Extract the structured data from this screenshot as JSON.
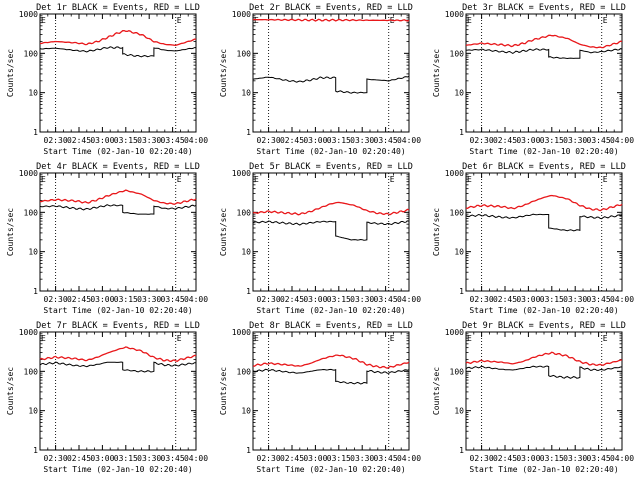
{
  "colors": {
    "events": "#000000",
    "lld": "#e8171a",
    "axis": "#000000",
    "background": "#ffffff"
  },
  "chart_data": [
    {
      "type": "line",
      "title": "Det 1r BLACK = Events, RED = LLD",
      "xlabel": "Start Time (02-Jan-10 02:20:40)",
      "ylabel": "Counts/sec",
      "yscale": "log",
      "ylim": [
        1,
        1000
      ],
      "ytick_labels": [
        "1",
        "10",
        "100",
        "1000"
      ],
      "xlim": [
        140,
        240
      ],
      "xtick_labels": [
        "02:30",
        "02:45",
        "03:00",
        "03:15",
        "03:30",
        "03:45",
        "04:00"
      ],
      "vlines": [
        150,
        227
      ],
      "corner_marks": [
        "E",
        "E"
      ],
      "series": [
        {
          "name": "Events",
          "x": [
            140,
            150,
            163,
            170,
            177,
            183,
            193,
            203,
            213,
            220,
            227,
            240
          ],
          "values": [
            130,
            135,
            118,
            112,
            125,
            140,
            95,
            85,
            140,
            120,
            115,
            140
          ]
        },
        {
          "name": "LLD",
          "x": [
            140,
            150,
            163,
            170,
            177,
            183,
            190,
            195,
            205,
            213,
            220,
            227,
            240
          ],
          "values": [
            180,
            200,
            185,
            170,
            200,
            250,
            330,
            380,
            300,
            200,
            170,
            160,
            230
          ]
        }
      ]
    },
    {
      "type": "line",
      "title": "Det 2r BLACK = Events, RED = LLD",
      "xlabel": "Start Time (02-Jan-10 02:20:40)",
      "ylabel": "Counts/sec",
      "yscale": "log",
      "ylim": [
        1,
        1000
      ],
      "ytick_labels": [
        "1",
        "10",
        "100",
        "1000"
      ],
      "xlim": [
        140,
        240
      ],
      "xtick_labels": [
        "02:30",
        "02:45",
        "03:00",
        "03:15",
        "03:30",
        "03:45",
        "04:00"
      ],
      "vlines": [
        150,
        227
      ],
      "corner_marks": [
        "E",
        "E"
      ],
      "series": [
        {
          "name": "Events",
          "x": [
            140,
            150,
            163,
            170,
            177,
            183,
            193,
            203,
            213,
            220,
            227,
            240
          ],
          "values": [
            22,
            25,
            20,
            19,
            21,
            24,
            11,
            10,
            22,
            21,
            20,
            26
          ]
        },
        {
          "name": "LLD",
          "x": [
            140,
            160,
            180,
            200,
            220,
            240
          ],
          "values": [
            720,
            710,
            700,
            700,
            690,
            690
          ]
        }
      ]
    },
    {
      "type": "line",
      "title": "Det 3r BLACK = Events, RED = LLD",
      "xlabel": "Start Time (02-Jan-10 02:20:40)",
      "ylabel": "Counts/sec",
      "yscale": "log",
      "ylim": [
        1,
        1000
      ],
      "ytick_labels": [
        "1",
        "10",
        "100",
        "1000"
      ],
      "xlim": [
        140,
        240
      ],
      "xtick_labels": [
        "02:30",
        "02:45",
        "03:00",
        "03:15",
        "03:30",
        "03:45",
        "04:00"
      ],
      "vlines": [
        150,
        227
      ],
      "corner_marks": [
        "E",
        "E"
      ],
      "series": [
        {
          "name": "Events",
          "x": [
            140,
            150,
            163,
            170,
            177,
            183,
            193,
            203,
            213,
            220,
            227,
            240
          ],
          "values": [
            120,
            125,
            110,
            105,
            115,
            125,
            80,
            75,
            120,
            105,
            110,
            130
          ]
        },
        {
          "name": "LLD",
          "x": [
            140,
            150,
            163,
            170,
            177,
            183,
            190,
            195,
            205,
            213,
            220,
            227,
            240
          ],
          "values": [
            160,
            180,
            165,
            155,
            180,
            220,
            260,
            290,
            240,
            170,
            145,
            140,
            200
          ]
        }
      ]
    },
    {
      "type": "line",
      "title": "Det 4r BLACK = Events, RED = LLD",
      "xlabel": "Start Time (02-Jan-10 02:20:40)",
      "ylabel": "Counts/sec",
      "yscale": "log",
      "ylim": [
        1,
        1000
      ],
      "ytick_labels": [
        "1",
        "10",
        "100",
        "1000"
      ],
      "xlim": [
        140,
        240
      ],
      "xtick_labels": [
        "02:30",
        "02:45",
        "03:00",
        "03:15",
        "03:30",
        "03:45",
        "04:00"
      ],
      "vlines": [
        150,
        227
      ],
      "corner_marks": [
        "E",
        "E"
      ],
      "series": [
        {
          "name": "Events",
          "x": [
            140,
            150,
            163,
            170,
            177,
            183,
            193,
            203,
            213,
            220,
            227,
            240
          ],
          "values": [
            140,
            145,
            125,
            120,
            135,
            150,
            100,
            90,
            145,
            125,
            125,
            150
          ]
        },
        {
          "name": "LLD",
          "x": [
            140,
            150,
            163,
            170,
            177,
            183,
            190,
            195,
            205,
            213,
            220,
            227,
            240
          ],
          "values": [
            190,
            210,
            195,
            175,
            210,
            260,
            320,
            360,
            290,
            200,
            170,
            165,
            220
          ]
        }
      ]
    },
    {
      "type": "line",
      "title": "Det 5r BLACK = Events, RED = LLD",
      "xlabel": "Start Time (02-Jan-10 02:20:40)",
      "ylabel": "Counts/sec",
      "yscale": "log",
      "ylim": [
        1,
        1000
      ],
      "ytick_labels": [
        "1",
        "10",
        "100",
        "1000"
      ],
      "xlim": [
        140,
        240
      ],
      "xtick_labels": [
        "02:30",
        "02:45",
        "03:00",
        "03:15",
        "03:30",
        "03:45",
        "04:00"
      ],
      "vlines": [
        150,
        227
      ],
      "corner_marks": [
        "E",
        "E"
      ],
      "series": [
        {
          "name": "Events",
          "x": [
            140,
            150,
            163,
            170,
            177,
            183,
            193,
            203,
            213,
            220,
            227,
            240
          ],
          "values": [
            55,
            58,
            52,
            50,
            54,
            58,
            25,
            20,
            55,
            52,
            50,
            60
          ]
        },
        {
          "name": "LLD",
          "x": [
            140,
            150,
            163,
            170,
            177,
            183,
            190,
            195,
            205,
            213,
            220,
            227,
            240
          ],
          "values": [
            95,
            105,
            95,
            90,
            105,
            130,
            165,
            180,
            150,
            110,
            95,
            90,
            115
          ]
        }
      ]
    },
    {
      "type": "line",
      "title": "Det 6r BLACK = Events, RED = LLD",
      "xlabel": "Start Time (02-Jan-10 02:20:40)",
      "ylabel": "Counts/sec",
      "yscale": "log",
      "ylim": [
        1,
        1000
      ],
      "ytick_labels": [
        "1",
        "10",
        "100",
        "1000"
      ],
      "xlim": [
        140,
        240
      ],
      "xtick_labels": [
        "02:30",
        "02:45",
        "03:00",
        "03:15",
        "03:30",
        "03:45",
        "04:00"
      ],
      "vlines": [
        150,
        227
      ],
      "corner_marks": [
        "E",
        "E"
      ],
      "series": [
        {
          "name": "Events",
          "x": [
            140,
            150,
            163,
            170,
            177,
            183,
            193,
            203,
            213,
            220,
            227,
            240
          ],
          "values": [
            80,
            85,
            75,
            72,
            80,
            88,
            40,
            35,
            80,
            75,
            72,
            85
          ]
        },
        {
          "name": "LLD",
          "x": [
            140,
            150,
            163,
            170,
            177,
            183,
            190,
            195,
            205,
            213,
            220,
            227,
            240
          ],
          "values": [
            130,
            150,
            140,
            125,
            150,
            190,
            240,
            270,
            220,
            150,
            120,
            115,
            160
          ]
        }
      ]
    },
    {
      "type": "line",
      "title": "Det 7r BLACK = Events, RED = LLD",
      "xlabel": "Start Time (02-Jan-10 02:20:40)",
      "ylabel": "Counts/sec",
      "yscale": "log",
      "ylim": [
        1,
        1000
      ],
      "ytick_labels": [
        "1",
        "10",
        "100",
        "1000"
      ],
      "xlim": [
        140,
        240
      ],
      "xtick_labels": [
        "02:30",
        "02:45",
        "03:00",
        "03:15",
        "03:30",
        "03:45",
        "04:00"
      ],
      "vlines": [
        150,
        227
      ],
      "corner_marks": [
        "E",
        "E"
      ],
      "series": [
        {
          "name": "Events",
          "x": [
            140,
            150,
            163,
            170,
            177,
            183,
            193,
            203,
            213,
            220,
            227,
            240
          ],
          "values": [
            150,
            165,
            140,
            135,
            150,
            170,
            110,
            100,
            165,
            145,
            140,
            165
          ]
        },
        {
          "name": "LLD",
          "x": [
            140,
            150,
            163,
            170,
            177,
            183,
            190,
            195,
            205,
            213,
            220,
            227,
            240
          ],
          "values": [
            200,
            230,
            210,
            190,
            230,
            290,
            360,
            410,
            330,
            225,
            190,
            185,
            250
          ]
        }
      ]
    },
    {
      "type": "line",
      "title": "Det 8r BLACK = Events, RED = LLD",
      "xlabel": "Start Time (02-Jan-10 02:20:40)",
      "ylabel": "Counts/sec",
      "yscale": "log",
      "ylim": [
        1,
        1000
      ],
      "ytick_labels": [
        "1",
        "10",
        "100",
        "1000"
      ],
      "xlim": [
        140,
        240
      ],
      "xtick_labels": [
        "02:30",
        "02:45",
        "03:00",
        "03:15",
        "03:30",
        "03:45",
        "04:00"
      ],
      "vlines": [
        150,
        227
      ],
      "corner_marks": [
        "E",
        "E"
      ],
      "series": [
        {
          "name": "Events",
          "x": [
            140,
            150,
            163,
            170,
            177,
            183,
            193,
            203,
            213,
            220,
            227,
            240
          ],
          "values": [
            100,
            110,
            95,
            90,
            100,
            110,
            55,
            50,
            105,
            95,
            92,
            110
          ]
        },
        {
          "name": "LLD",
          "x": [
            140,
            150,
            163,
            170,
            177,
            183,
            190,
            195,
            205,
            213,
            220,
            227,
            240
          ],
          "values": [
            140,
            160,
            145,
            135,
            160,
            200,
            240,
            260,
            210,
            150,
            130,
            125,
            170
          ]
        }
      ]
    },
    {
      "type": "line",
      "title": "Det 9r BLACK = Events, RED = LLD",
      "xlabel": "Start Time (02-Jan-10 02:20:40)",
      "ylabel": "Counts/sec",
      "yscale": "log",
      "ylim": [
        1,
        1000
      ],
      "ytick_labels": [
        "1",
        "10",
        "100",
        "1000"
      ],
      "xlim": [
        140,
        240
      ],
      "xtick_labels": [
        "02:30",
        "02:45",
        "03:00",
        "03:15",
        "03:30",
        "03:45",
        "04:00"
      ],
      "vlines": [
        150,
        227
      ],
      "corner_marks": [
        "E",
        "E"
      ],
      "series": [
        {
          "name": "Events",
          "x": [
            140,
            150,
            163,
            170,
            177,
            183,
            193,
            203,
            213,
            220,
            227,
            240
          ],
          "values": [
            120,
            130,
            112,
            108,
            120,
            132,
            78,
            70,
            125,
            110,
            108,
            130
          ]
        },
        {
          "name": "LLD",
          "x": [
            140,
            150,
            163,
            170,
            177,
            183,
            190,
            195,
            205,
            213,
            220,
            227,
            240
          ],
          "values": [
            160,
            185,
            170,
            155,
            180,
            225,
            270,
            295,
            245,
            175,
            150,
            145,
            195
          ]
        }
      ]
    }
  ]
}
